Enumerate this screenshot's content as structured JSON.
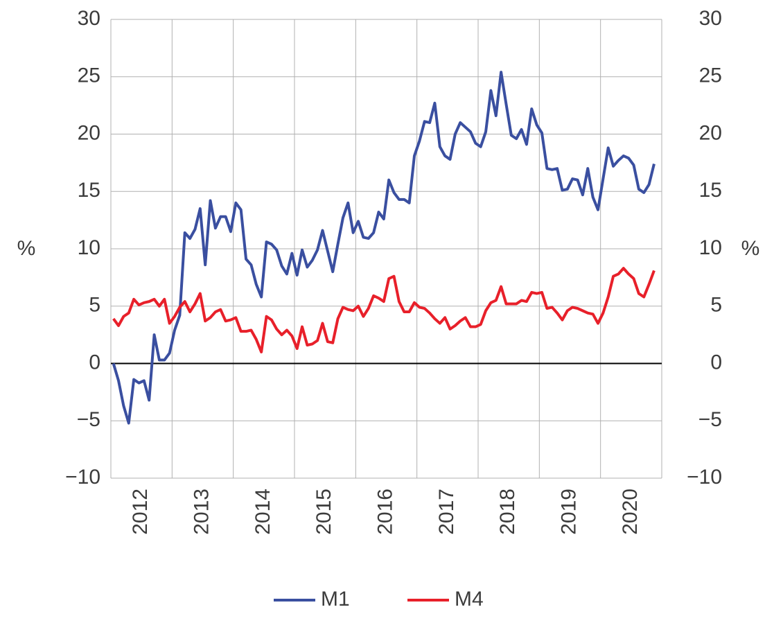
{
  "chart_data": {
    "type": "line",
    "y_label": "%",
    "y2_label": "%",
    "categories": [
      "2012",
      null,
      null,
      null,
      null,
      null,
      null,
      null,
      null,
      null,
      null,
      null,
      "2013",
      null,
      null,
      null,
      null,
      null,
      null,
      null,
      null,
      null,
      null,
      null,
      "2014",
      null,
      null,
      null,
      null,
      null,
      null,
      null,
      null,
      null,
      null,
      null,
      "2015",
      null,
      null,
      null,
      null,
      null,
      null,
      null,
      null,
      null,
      null,
      null,
      "2016",
      null,
      null,
      null,
      null,
      null,
      null,
      null,
      null,
      null,
      null,
      null,
      "2017",
      null,
      null,
      null,
      null,
      null,
      null,
      null,
      null,
      null,
      null,
      null,
      "2018",
      null,
      null,
      null,
      null,
      null,
      null,
      null,
      null,
      null,
      null,
      null,
      "2019",
      null,
      null,
      null,
      null,
      null,
      null,
      null,
      null,
      null,
      null,
      null,
      "2020",
      null,
      null,
      null,
      null,
      null,
      null,
      null,
      null,
      null,
      null
    ],
    "series": [
      {
        "name": "M1",
        "color": "#3a4fa0",
        "values": [
          0.0,
          -1.5,
          -3.7,
          -5.2,
          -1.4,
          -1.7,
          -1.5,
          -3.2,
          2.5,
          0.3,
          0.3,
          0.9,
          2.9,
          4.2,
          11.4,
          10.9,
          11.7,
          13.5,
          8.6,
          14.2,
          11.8,
          12.8,
          12.8,
          11.5,
          14.0,
          13.4,
          9.1,
          8.6,
          6.9,
          5.8,
          10.6,
          10.4,
          9.9,
          8.5,
          7.8,
          9.6,
          7.7,
          9.9,
          8.4,
          9.0,
          9.9,
          11.6,
          9.8,
          8.0,
          10.4,
          12.7,
          14.0,
          11.4,
          12.4,
          11.0,
          10.9,
          11.4,
          13.2,
          12.6,
          16.0,
          14.9,
          14.3,
          14.3,
          14.0,
          18.1,
          19.4,
          21.1,
          21.0,
          22.7,
          18.9,
          18.1,
          17.8,
          20.0,
          21.0,
          20.6,
          20.2,
          19.2,
          18.9,
          20.2,
          23.8,
          21.6,
          25.4,
          22.6,
          19.9,
          19.6,
          20.4,
          19.1,
          22.2,
          20.8,
          20.1,
          17.0,
          16.9,
          17.0,
          15.1,
          15.2,
          16.1,
          16.0,
          14.7,
          17.0,
          14.5,
          13.4,
          16.1,
          18.8,
          17.2,
          17.7,
          18.1,
          17.9,
          17.3,
          15.2,
          14.9,
          15.6,
          17.4
        ]
      },
      {
        "name": "M4",
        "color": "#e8202a",
        "values": [
          3.9,
          3.3,
          4.1,
          4.4,
          5.6,
          5.1,
          5.3,
          5.4,
          5.6,
          5.0,
          5.6,
          3.5,
          4.1,
          4.9,
          5.4,
          4.5,
          5.2,
          6.1,
          3.7,
          4.0,
          4.5,
          4.7,
          3.7,
          3.8,
          4.0,
          2.8,
          2.8,
          2.9,
          2.1,
          1.0,
          4.1,
          3.8,
          3.0,
          2.5,
          2.9,
          2.4,
          1.3,
          3.2,
          1.6,
          1.7,
          2.0,
          3.5,
          1.9,
          1.8,
          3.9,
          4.9,
          4.7,
          4.6,
          5.0,
          4.1,
          4.8,
          5.9,
          5.7,
          5.4,
          7.4,
          7.6,
          5.4,
          4.5,
          4.5,
          5.3,
          4.9,
          4.8,
          4.4,
          3.9,
          3.5,
          4.0,
          3.0,
          3.3,
          3.7,
          4.0,
          3.2,
          3.2,
          3.4,
          4.6,
          5.3,
          5.5,
          6.7,
          5.2,
          5.2,
          5.2,
          5.5,
          5.4,
          6.2,
          6.1,
          6.2,
          4.8,
          4.9,
          4.4,
          3.8,
          4.6,
          4.9,
          4.8,
          4.6,
          4.4,
          4.3,
          3.5,
          4.4,
          5.8,
          7.6,
          7.8,
          8.3,
          7.8,
          7.4,
          6.1,
          5.8,
          6.9,
          8.1
        ]
      }
    ],
    "ylim": [
      -10,
      30
    ],
    "yticks": [
      {
        "value": -10,
        "label": "−10"
      },
      {
        "value": -5,
        "label": "−5"
      },
      0,
      5,
      10,
      15,
      20,
      25,
      30
    ],
    "y2lim": [
      -10,
      30
    ],
    "y2ticks": [
      {
        "value": -10,
        "label": "−10"
      },
      {
        "value": -5,
        "label": "−5"
      },
      0,
      5,
      10,
      15,
      20,
      25,
      30
    ],
    "grid": true,
    "legend": "bottom"
  }
}
